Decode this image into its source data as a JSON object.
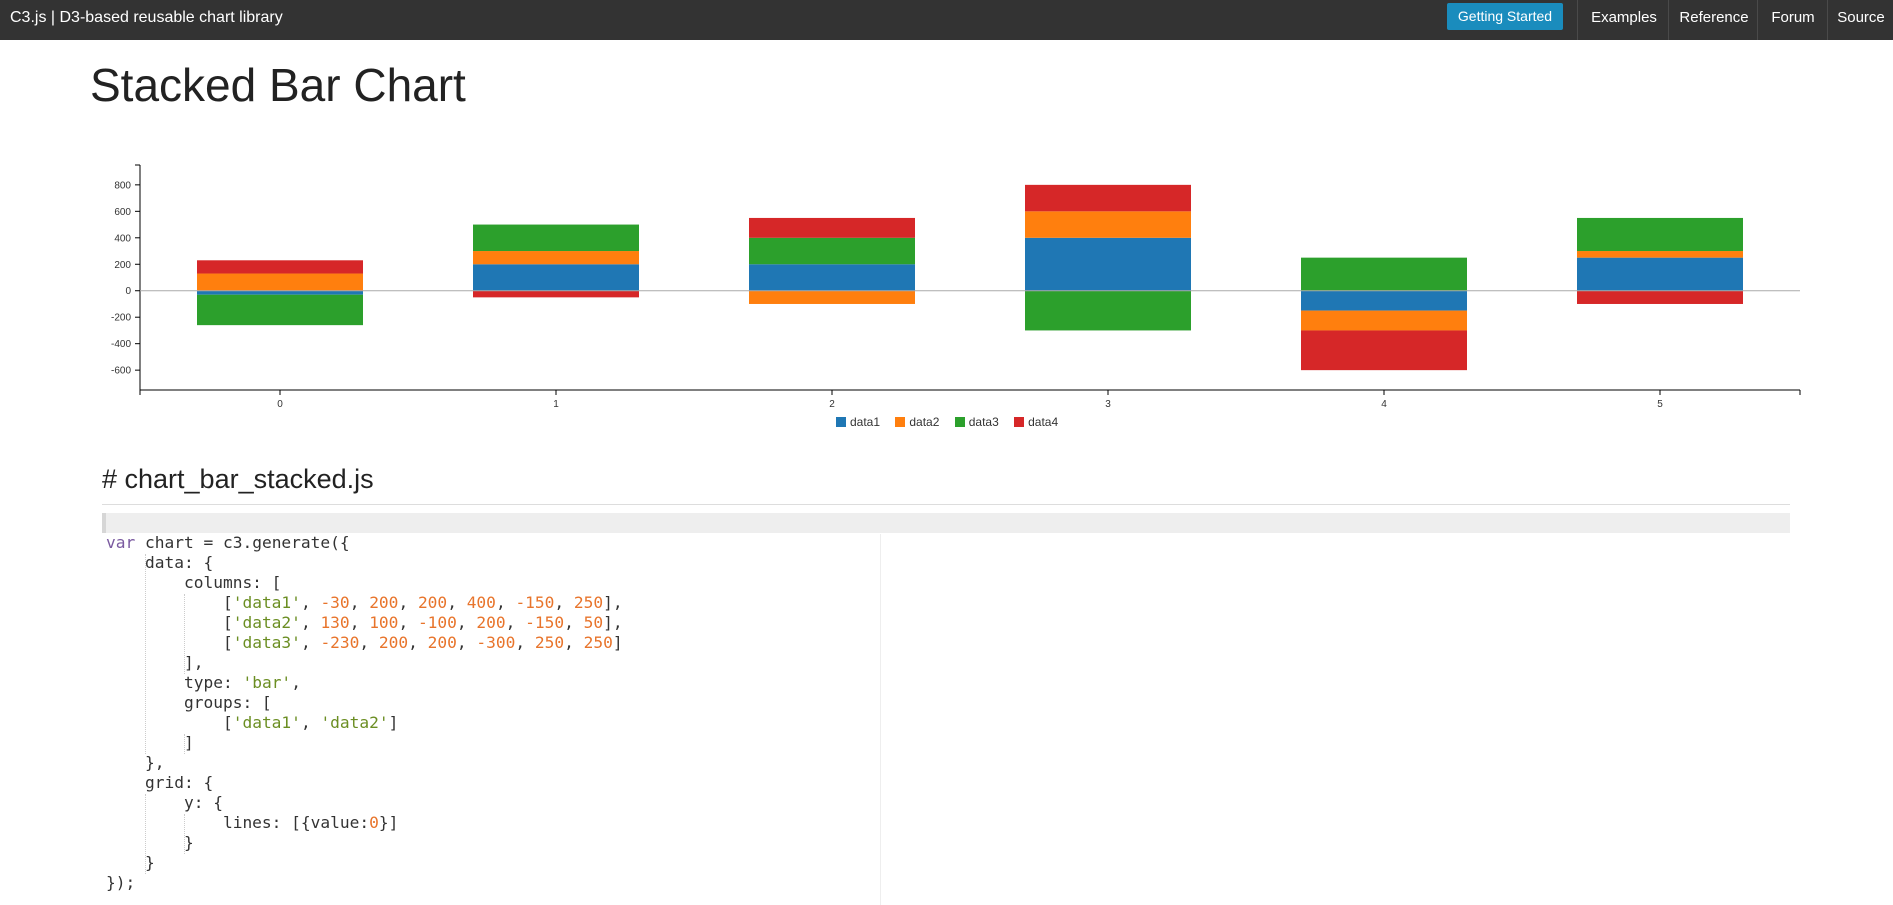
{
  "navbar": {
    "brand": "C3.js | D3-based reusable chart library",
    "getting_started": "Getting Started",
    "links": [
      "Examples",
      "Reference",
      "Forum",
      "Source"
    ]
  },
  "page_title": "Stacked Bar Chart",
  "chart_data": {
    "type": "bar",
    "stacked": true,
    "categories": [
      "0",
      "1",
      "2",
      "3",
      "4",
      "5"
    ],
    "series": [
      {
        "name": "data1",
        "values": [
          -30,
          200,
          200,
          400,
          -150,
          250
        ],
        "color": "#1f77b4"
      },
      {
        "name": "data2",
        "values": [
          130,
          100,
          -100,
          200,
          -150,
          50
        ],
        "color": "#ff7f0e"
      },
      {
        "name": "data3",
        "values": [
          -230,
          200,
          200,
          -300,
          250,
          250
        ],
        "color": "#2ca02c"
      },
      {
        "name": "data4",
        "values": [
          100,
          -50,
          150,
          200,
          -300,
          -100
        ],
        "color": "#d62728"
      }
    ],
    "y_ticks": [
      800,
      600,
      400,
      200,
      0,
      -200,
      -400,
      -600
    ],
    "ylim": [
      -750,
      950
    ],
    "grid_y_lines": [
      0
    ],
    "legend_position": "bottom"
  },
  "file_header": "# chart_bar_stacked.js",
  "code": {
    "line1_kw": "var",
    "line1_rest": " chart = c3.generate({",
    "line2": "    data: {",
    "line3": "        columns: [",
    "row1_str": "'data1'",
    "row1_nums": [
      "-30",
      "200",
      "200",
      "400",
      "-150",
      "250"
    ],
    "row2_str": "'data2'",
    "row2_nums": [
      "130",
      "100",
      "-100",
      "200",
      "-150",
      "50"
    ],
    "row3_str": "'data3'",
    "row3_nums": [
      "-230",
      "200",
      "200",
      "-300",
      "250",
      "250"
    ],
    "line7": "        ],",
    "line8_key": "        type: ",
    "line8_str": "'bar'",
    "line8_end": ",",
    "line9": "        groups: [",
    "line10_a": "'data1'",
    "line10_b": "'data2'",
    "line11": "        ]",
    "line12": "    },",
    "line13": "    grid: {",
    "line14": "        y: {",
    "line15_a": "            lines: [{value:",
    "line15_num": "0",
    "line15_b": "}]",
    "line16": "        }",
    "line17": "    }",
    "line18": "});"
  }
}
